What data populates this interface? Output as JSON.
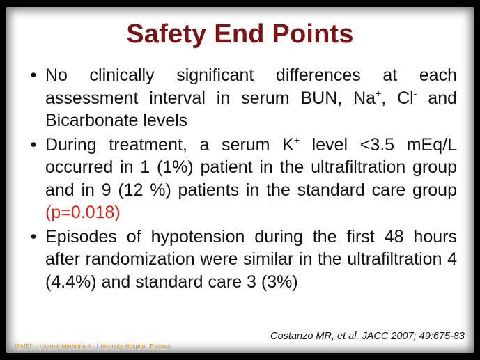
{
  "slide": {
    "title": "Safety End Points",
    "bullets": [
      {
        "t1": "No clinically significant differences at each assessment interval in serum BUN, Na",
        "sup1": "+",
        "t2": ", Cl",
        "sup2": "-",
        "t3": " and Bicarbonate levels"
      },
      {
        "t1": "During treatment, a serum K",
        "sup1": "+",
        "t2": " level <3.5 mEq/L occurred in 1 (1%) patient in the ultrafiltration group and in 9 (12 %) patients in the standard care group ",
        "highlight": "(p=0.018)"
      },
      {
        "t1": "Episodes of hypotension during the first 48 hours after randomization were similar in the ultrafiltration 4 (4.4%) and standard care 3 (3%)"
      }
    ],
    "citation": "Costanzo MR, et al. JACC 2007; 49:675-83",
    "footer": "DIMED - Internal Medicine 4 - University Hospital, Padova",
    "colors": {
      "title": "#7b1216",
      "highlight": "#e0221b",
      "footer": "#c8962a",
      "background": "#000000"
    }
  }
}
